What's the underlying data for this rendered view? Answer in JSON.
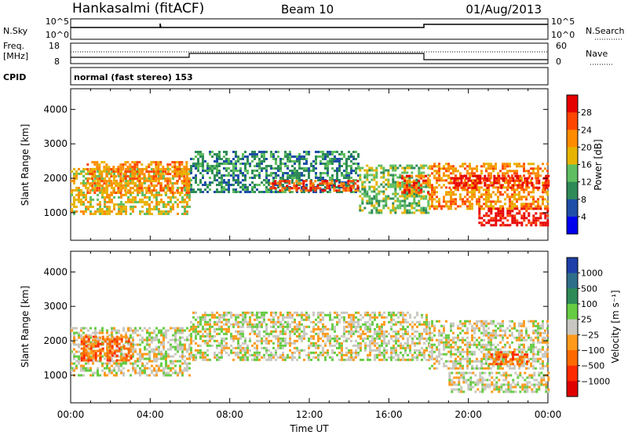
{
  "header": {
    "station": "Hankasalmi (fitACF)",
    "beam": "Beam 10",
    "date": "01/Aug/2013"
  },
  "top_panels": {
    "nsky_label": "N.Sky",
    "nsky_ticks": [
      "10^5",
      "10^0"
    ],
    "nsearch_label": "N.Search",
    "freq_label_1": "Freq.",
    "freq_label_2": "[MHz]",
    "freq_ticks": [
      "18",
      "8"
    ],
    "nave_label": "Nave",
    "nave_ticks": [
      "60",
      "0"
    ],
    "cpid_label": "CPID",
    "cpid_text": "normal (fast stereo) 153"
  },
  "chart_data": [
    {
      "type": "heatmap",
      "title": "",
      "xlabel": "",
      "ylabel": "Slant Range [km]",
      "xlim": [
        0,
        24
      ],
      "ylim": [
        200,
        4600
      ],
      "x_ticks": [
        "00:00",
        "04:00",
        "08:00",
        "12:00",
        "16:00",
        "20:00",
        "00:00"
      ],
      "y_ticks": [
        "1000",
        "2000",
        "3000",
        "4000"
      ],
      "colorbar": {
        "label": "Power [dB]",
        "ticks": [
          "4",
          "8",
          "12",
          "16",
          "20",
          "24",
          "28"
        ],
        "colors": [
          "#0000ee",
          "#1f4ea8",
          "#2e8b57",
          "#5fbe5f",
          "#e6b400",
          "#ff8c00",
          "#ff4500",
          "#e60000"
        ]
      },
      "bands": [
        {
          "x0": 0.0,
          "x1": 6.0,
          "y_center": 1650,
          "half_width": 650,
          "level": 4
        },
        {
          "x0": 0.8,
          "x1": 6.0,
          "y_center": 2050,
          "half_width": 450,
          "level": 5
        },
        {
          "x0": 6.0,
          "x1": 14.5,
          "y_center": 2200,
          "half_width": 600,
          "level": 2
        },
        {
          "x0": 10.0,
          "x1": 14.5,
          "y_center": 1800,
          "half_width": 150,
          "level": 6
        },
        {
          "x0": 14.5,
          "x1": 18.0,
          "y_center": 1700,
          "half_width": 700,
          "level": 3
        },
        {
          "x0": 16.5,
          "x1": 18.0,
          "y_center": 1850,
          "half_width": 250,
          "level": 6
        },
        {
          "x0": 18.0,
          "x1": 24.0,
          "y_center": 1800,
          "half_width": 650,
          "level": 5
        },
        {
          "x0": 19.0,
          "x1": 24.0,
          "y_center": 1900,
          "half_width": 200,
          "level": 7
        },
        {
          "x0": 20.5,
          "x1": 24.0,
          "y_center": 900,
          "half_width": 250,
          "level": 7
        }
      ]
    },
    {
      "type": "heatmap",
      "title": "",
      "xlabel": "Time UT",
      "ylabel": "Slant Range [km]",
      "xlim": [
        0,
        24
      ],
      "ylim": [
        200,
        4600
      ],
      "x_ticks": [
        "00:00",
        "04:00",
        "08:00",
        "12:00",
        "16:00",
        "20:00",
        "00:00"
      ],
      "y_ticks": [
        "1000",
        "2000",
        "3000",
        "4000"
      ],
      "colorbar": {
        "label": "Velocity [m s⁻¹]",
        "ticks": [
          "1000",
          "500",
          "100",
          "25",
          "−25",
          "−100",
          "−500",
          "−1000"
        ],
        "colors": [
          "#1e3fa8",
          "#2f6e8a",
          "#2e8b57",
          "#66cc44",
          "#c8c8c0",
          "#ff9a1a",
          "#ff6a00",
          "#ff2a00",
          "#e00000"
        ]
      },
      "bands": [
        {
          "x0": 0.0,
          "x1": 6.0,
          "y_center": 1700,
          "half_width": 700,
          "level": 4
        },
        {
          "x0": 0.5,
          "x1": 3.0,
          "y_center": 1800,
          "half_width": 350,
          "level": 6
        },
        {
          "x0": 6.0,
          "x1": 18.0,
          "y_center": 2150,
          "half_width": 700,
          "level": 4
        },
        {
          "x0": 18.0,
          "x1": 24.0,
          "y_center": 1900,
          "half_width": 700,
          "level": 4
        },
        {
          "x0": 21.0,
          "x1": 23.0,
          "y_center": 1500,
          "half_width": 200,
          "level": 6
        },
        {
          "x0": 19.0,
          "x1": 24.0,
          "y_center": 800,
          "half_width": 300,
          "level": 4
        }
      ]
    }
  ]
}
